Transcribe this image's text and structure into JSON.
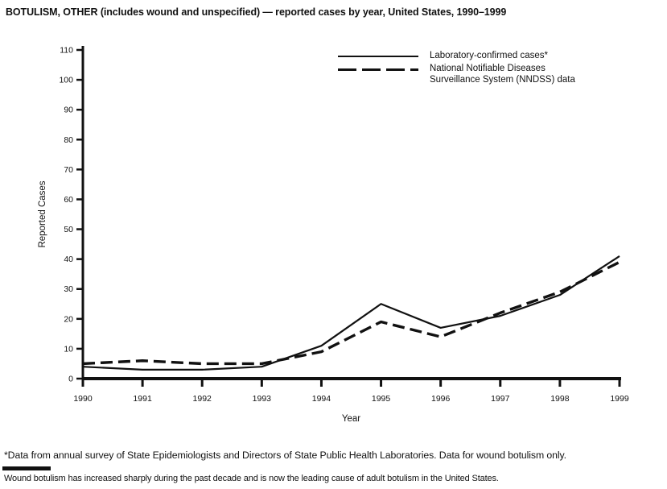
{
  "title": "BOTULISM, OTHER (includes wound and unspecified) — reported cases by year, United States, 1990–1999",
  "footnotes": {
    "asterisk_note": "*Data from annual survey of State Epidemiologists and Directors of State Public Health Laboratories. Data for wound botulism only.",
    "wound_note": "Wound botulism has increased sharply during the past decade and is now the leading cause of adult botulism in the United States."
  },
  "colors": {
    "ink": "#111111",
    "background": "#ffffff"
  },
  "chart_data": {
    "type": "line",
    "title": "BOTULISM, OTHER (includes wound and unspecified) — reported cases by year, United States, 1990–1999",
    "xlabel": "Year",
    "ylabel": "Reported Cases",
    "x": [
      1990,
      1991,
      1992,
      1993,
      1994,
      1995,
      1996,
      1997,
      1998,
      1999
    ],
    "yticks": [
      0,
      10,
      20,
      30,
      40,
      50,
      60,
      70,
      80,
      90,
      100,
      110
    ],
    "ylim": [
      0,
      110
    ],
    "grid": false,
    "legend_position": "top-right",
    "series": [
      {
        "name": "Laboratory-confirmed cases*",
        "style": "solid",
        "color": "#111111",
        "values": [
          4,
          3,
          3,
          4,
          11,
          25,
          17,
          21,
          28,
          41
        ]
      },
      {
        "name": "National Notifiable Diseases Surveillance System (NNDSS) data",
        "style": "dashed",
        "color": "#111111",
        "values": [
          5,
          6,
          5,
          5,
          9,
          19,
          14,
          22,
          29,
          39
        ]
      }
    ]
  }
}
